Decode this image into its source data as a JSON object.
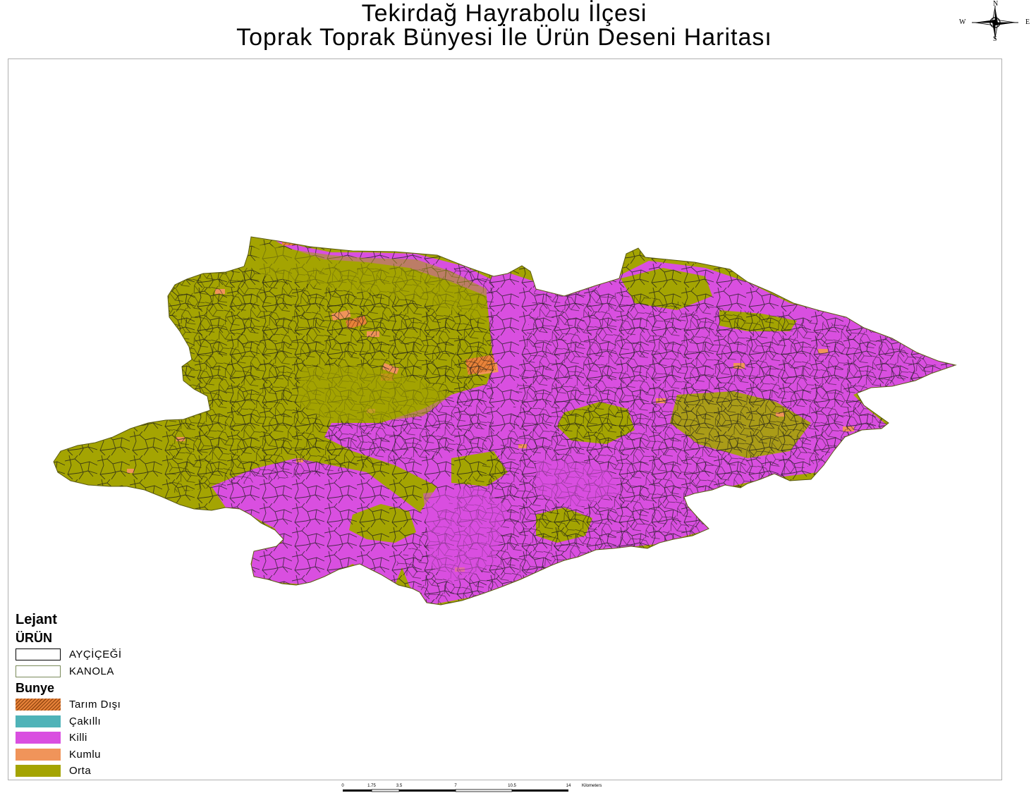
{
  "title": {
    "line1": "Tekirdağ Hayrabolu İlçesi",
    "line2": "Toprak Toprak Bünyesi İle Ürün Deseni Haritası"
  },
  "compass": {
    "north": "N",
    "south": "S",
    "east": "E",
    "west": "W"
  },
  "legend": {
    "heading": "Lejant",
    "product_heading": "ÜRÜN",
    "products": [
      {
        "label": "AYÇİÇEĞİ",
        "outline": "#000000"
      },
      {
        "label": "KANOLA",
        "outline": "#7a8a5a"
      }
    ],
    "texture_heading": "Bunye",
    "textures": [
      {
        "label": "Tarım Dışı",
        "color": "#e8833a",
        "pattern": "hatch"
      },
      {
        "label": "Çakıllı",
        "color": "#4fb3b8",
        "pattern": "solid"
      },
      {
        "label": "Killi",
        "color": "#d94fe0",
        "pattern": "solid"
      },
      {
        "label": "Kumlu",
        "color": "#f0945a",
        "pattern": "solid"
      },
      {
        "label": "Orta",
        "color": "#a4a402",
        "pattern": "solid"
      }
    ]
  },
  "map_colors": {
    "orta": "#a4a402",
    "killi": "#d94fe0",
    "kumlu": "#f0945a",
    "tarim_disi": "#e8833a",
    "parcel_outline": "#1a1a1a"
  },
  "scalebar": {
    "ticks": [
      "0",
      "1.75",
      "3.5",
      "7",
      "10.5",
      "14"
    ],
    "unit": "Kilometers"
  }
}
